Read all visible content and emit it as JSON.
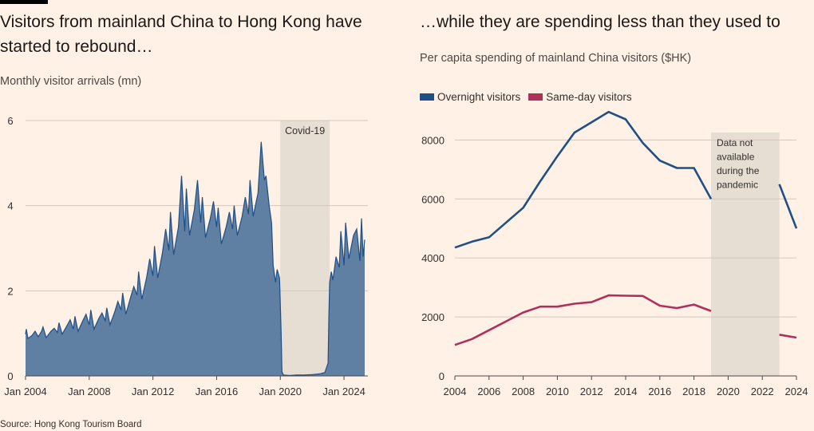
{
  "left_title": "Visitors from mainland China to Hong Kong have started to rebound…",
  "left_subtitle": "Monthly visitor arrivals (mn)",
  "right_title": "…while they are spending less than they used to",
  "right_subtitle": "Per capita spending of mainland China visitors ($HK)",
  "source": "Source: Hong Kong Tourism Board",
  "colors": {
    "area": "#5f7fa3",
    "area_line": "#1f4f86",
    "overnight": "#1f4f86",
    "sameday": "#b0305c",
    "shade": "#e6ddd3",
    "grid": "#d2c7bd"
  },
  "chart_data": [
    {
      "type": "area",
      "title": "Visitors from mainland China to Hong Kong have started to rebound…",
      "ylabel": "Monthly visitor arrivals (mn)",
      "ylim": [
        0,
        6
      ],
      "yticks": [
        "0",
        "2",
        "4",
        "6"
      ],
      "xticks": [
        "Jan 2004",
        "Jan 2008",
        "Jan 2012",
        "Jan 2016",
        "Jan 2020",
        "Jan 2024"
      ],
      "xtick_years": [
        2004,
        2008,
        2012,
        2016,
        2020,
        2024
      ],
      "x_range": [
        2004.0,
        2025.5
      ],
      "shaded_label": "Covid-19",
      "shaded_range": [
        2020.0,
        2023.1
      ],
      "series": [
        {
          "name": "Monthly visitor arrivals",
          "points": [
            [
              2004.0,
              0.98
            ],
            [
              2004.05,
              1.1
            ],
            [
              2004.15,
              0.88
            ],
            [
              2004.4,
              0.95
            ],
            [
              2004.6,
              1.05
            ],
            [
              2004.8,
              0.92
            ],
            [
              2005.0,
              1.05
            ],
            [
              2005.1,
              1.15
            ],
            [
              2005.3,
              0.9
            ],
            [
              2005.6,
              1.05
            ],
            [
              2005.8,
              1.12
            ],
            [
              2006.0,
              1.02
            ],
            [
              2006.1,
              1.25
            ],
            [
              2006.3,
              0.98
            ],
            [
              2006.6,
              1.18
            ],
            [
              2006.8,
              1.32
            ],
            [
              2007.0,
              1.1
            ],
            [
              2007.1,
              1.4
            ],
            [
              2007.3,
              1.05
            ],
            [
              2007.6,
              1.3
            ],
            [
              2007.8,
              1.45
            ],
            [
              2008.0,
              1.2
            ],
            [
              2008.1,
              1.55
            ],
            [
              2008.3,
              1.1
            ],
            [
              2008.6,
              1.35
            ],
            [
              2008.8,
              1.48
            ],
            [
              2009.0,
              1.3
            ],
            [
              2009.1,
              1.6
            ],
            [
              2009.3,
              1.2
            ],
            [
              2009.6,
              1.5
            ],
            [
              2009.8,
              1.75
            ],
            [
              2010.0,
              1.55
            ],
            [
              2010.1,
              1.95
            ],
            [
              2010.3,
              1.45
            ],
            [
              2010.6,
              1.85
            ],
            [
              2010.8,
              2.1
            ],
            [
              2011.0,
              1.9
            ],
            [
              2011.1,
              2.45
            ],
            [
              2011.3,
              1.8
            ],
            [
              2011.6,
              2.3
            ],
            [
              2011.8,
              2.75
            ],
            [
              2012.0,
              2.35
            ],
            [
              2012.1,
              3.05
            ],
            [
              2012.3,
              2.3
            ],
            [
              2012.6,
              2.9
            ],
            [
              2012.8,
              3.45
            ],
            [
              2013.0,
              2.95
            ],
            [
              2013.1,
              3.85
            ],
            [
              2013.3,
              2.85
            ],
            [
              2013.6,
              3.5
            ],
            [
              2013.8,
              4.7
            ],
            [
              2014.0,
              3.4
            ],
            [
              2014.1,
              4.4
            ],
            [
              2014.3,
              3.3
            ],
            [
              2014.6,
              3.9
            ],
            [
              2014.8,
              4.6
            ],
            [
              2015.0,
              3.6
            ],
            [
              2015.1,
              4.2
            ],
            [
              2015.3,
              3.25
            ],
            [
              2015.6,
              3.7
            ],
            [
              2015.8,
              4.1
            ],
            [
              2016.0,
              3.5
            ],
            [
              2016.1,
              3.95
            ],
            [
              2016.3,
              3.1
            ],
            [
              2016.6,
              3.5
            ],
            [
              2016.8,
              3.85
            ],
            [
              2017.0,
              3.45
            ],
            [
              2017.1,
              4.0
            ],
            [
              2017.3,
              3.3
            ],
            [
              2017.6,
              3.75
            ],
            [
              2017.8,
              4.2
            ],
            [
              2018.0,
              3.8
            ],
            [
              2018.1,
              4.6
            ],
            [
              2018.3,
              3.75
            ],
            [
              2018.6,
              4.3
            ],
            [
              2018.8,
              5.5
            ],
            [
              2019.0,
              4.6
            ],
            [
              2019.1,
              4.7
            ],
            [
              2019.3,
              4.0
            ],
            [
              2019.45,
              3.6
            ],
            [
              2019.55,
              2.6
            ],
            [
              2019.7,
              2.2
            ],
            [
              2019.8,
              2.5
            ],
            [
              2019.95,
              2.3
            ],
            [
              2020.05,
              1.0
            ],
            [
              2020.1,
              0.1
            ],
            [
              2020.2,
              0.02
            ],
            [
              2020.6,
              0.01
            ],
            [
              2021.0,
              0.02
            ],
            [
              2021.5,
              0.02
            ],
            [
              2022.0,
              0.03
            ],
            [
              2022.5,
              0.05
            ],
            [
              2022.8,
              0.08
            ],
            [
              2023.0,
              0.3
            ],
            [
              2023.05,
              1.4
            ],
            [
              2023.1,
              2.2
            ],
            [
              2023.2,
              2.45
            ],
            [
              2023.3,
              2.25
            ],
            [
              2023.5,
              2.8
            ],
            [
              2023.7,
              2.55
            ],
            [
              2023.8,
              3.4
            ],
            [
              2024.0,
              2.6
            ],
            [
              2024.1,
              3.6
            ],
            [
              2024.3,
              2.75
            ],
            [
              2024.6,
              3.3
            ],
            [
              2024.8,
              3.45
            ],
            [
              2025.0,
              2.7
            ],
            [
              2025.1,
              3.7
            ],
            [
              2025.2,
              2.8
            ],
            [
              2025.3,
              3.2
            ]
          ]
        }
      ]
    },
    {
      "type": "line",
      "title": "…while they are spending less than they used to",
      "ylabel": "Per capita spending of mainland China visitors ($HK)",
      "ylim": [
        0,
        9200
      ],
      "yticks": [
        "0",
        "2000",
        "4000",
        "6000",
        "8000"
      ],
      "xticks": [
        "2004",
        "2006",
        "2008",
        "2010",
        "2012",
        "2014",
        "2016",
        "2018",
        "2020",
        "2022",
        "2024"
      ],
      "x_range": [
        2004,
        2024
      ],
      "shaded_label": "Data not available during the pandemic",
      "shaded_range": [
        2019,
        2023
      ],
      "series": [
        {
          "name": "Overnight visitors",
          "segments": [
            [
              [
                2004,
                4350
              ],
              [
                2005,
                4550
              ],
              [
                2006,
                4700
              ],
              [
                2007,
                5200
              ],
              [
                2008,
                5700
              ],
              [
                2009,
                6600
              ],
              [
                2010,
                7450
              ],
              [
                2011,
                8250
              ],
              [
                2012,
                8600
              ],
              [
                2013,
                8950
              ],
              [
                2014,
                8700
              ],
              [
                2015,
                7900
              ],
              [
                2016,
                7300
              ],
              [
                2017,
                7050
              ],
              [
                2018,
                7050
              ],
              [
                2019,
                6000
              ]
            ],
            [
              [
                2023,
                6500
              ],
              [
                2024,
                5000
              ]
            ]
          ]
        },
        {
          "name": "Same-day visitors",
          "segments": [
            [
              [
                2004,
                1050
              ],
              [
                2005,
                1250
              ],
              [
                2006,
                1550
              ],
              [
                2007,
                1850
              ],
              [
                2008,
                2150
              ],
              [
                2009,
                2350
              ],
              [
                2010,
                2350
              ],
              [
                2011,
                2450
              ],
              [
                2012,
                2500
              ],
              [
                2013,
                2730
              ],
              [
                2014,
                2720
              ],
              [
                2015,
                2710
              ],
              [
                2016,
                2380
              ],
              [
                2017,
                2300
              ],
              [
                2018,
                2420
              ],
              [
                2019,
                2200
              ]
            ],
            [
              [
                2023,
                1400
              ],
              [
                2024,
                1300
              ]
            ]
          ]
        }
      ]
    }
  ]
}
